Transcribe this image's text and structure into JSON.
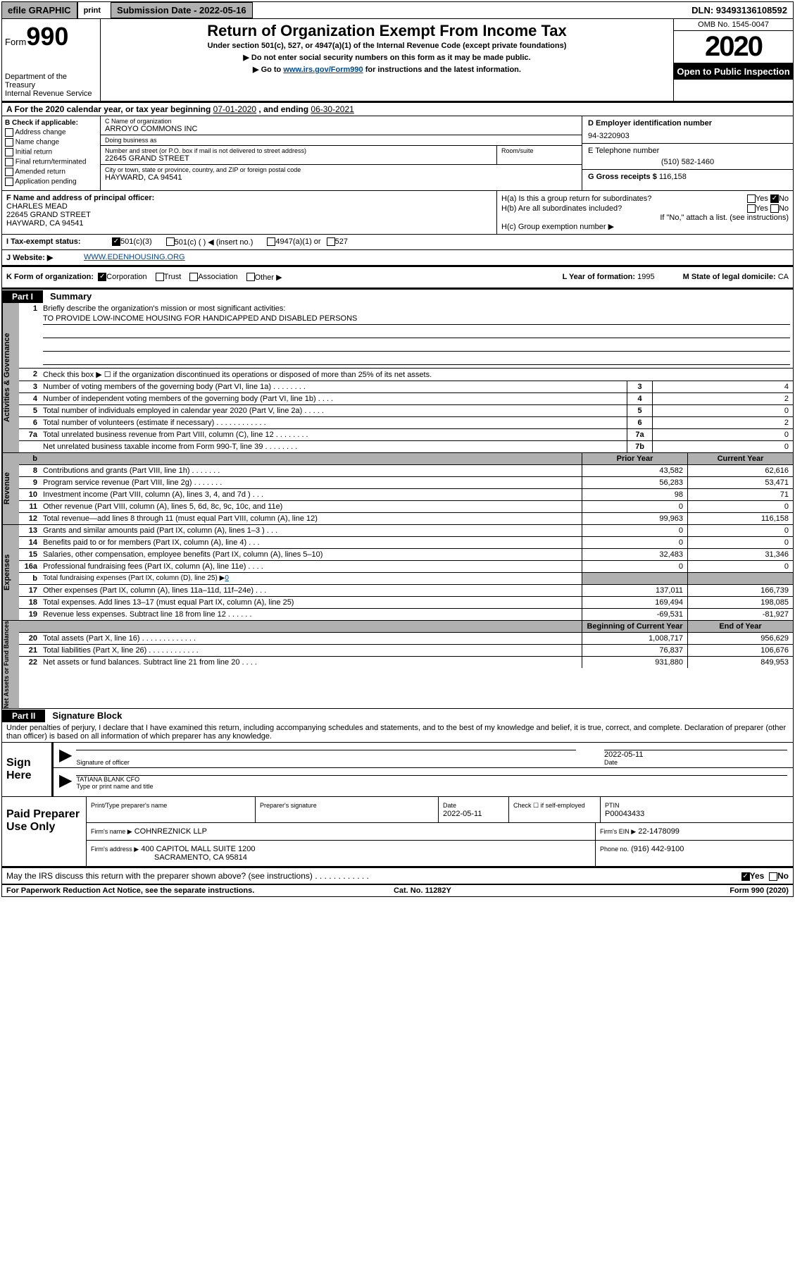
{
  "topbar": {
    "efile": "efile GRAPHIC",
    "print": "print",
    "subdate_label": "Submission Date - 2022-05-16",
    "dln": "DLN: 93493136108592"
  },
  "header": {
    "form_label": "Form",
    "form_num": "990",
    "dept": "Department of the Treasury\nInternal Revenue Service",
    "title": "Return of Organization Exempt From Income Tax",
    "subtitle": "Under section 501(c), 527, or 4947(a)(1) of the Internal Revenue Code (except private foundations)",
    "line1": "▶ Do not enter social security numbers on this form as it may be made public.",
    "line2a": "▶ Go to ",
    "line2_link": "www.irs.gov/Form990",
    "line2b": " for instructions and the latest information.",
    "omb": "OMB No. 1545-0047",
    "year": "2020",
    "open_public": "Open to Public Inspection"
  },
  "A": {
    "text_a": "A   For the 2020 calendar year, or tax year beginning ",
    "begin": "07-01-2020",
    "text_b": "  , and ending ",
    "end": "06-30-2021"
  },
  "B": {
    "hdr": "B Check if applicable:",
    "items": [
      "Address change",
      "Name change",
      "Initial return",
      "Final return/terminated",
      "Amended return",
      "Application pending"
    ]
  },
  "C": {
    "name_lbl": "C Name of organization",
    "name": "ARROYO COMMONS INC",
    "dba_lbl": "Doing business as",
    "dba": "",
    "street_lbl": "Number and street (or P.O. box if mail is not delivered to street address)",
    "room_lbl": "Room/suite",
    "street": "22645 GRAND STREET",
    "city_lbl": "City or town, state or province, country, and ZIP or foreign postal code",
    "city": "HAYWARD, CA  94541"
  },
  "D": {
    "lbl": "D Employer identification number",
    "val": "94-3220903"
  },
  "E": {
    "lbl": "E Telephone number",
    "val": "(510) 582-1460"
  },
  "G": {
    "lbl": "G Gross receipts $",
    "val": "116,158"
  },
  "F": {
    "lbl": "F  Name and address of principal officer:",
    "name": "CHARLES MEAD",
    "street": "22645 GRAND STREET",
    "city": "HAYWARD, CA  94541"
  },
  "H": {
    "a_lbl": "H(a)  Is this a group return for subordinates?",
    "a_yes": "Yes",
    "a_no": "No",
    "b_lbl": "H(b)  Are all subordinates included?",
    "b_yes": "Yes",
    "b_no": "No",
    "b_note": "If \"No,\" attach a list. (see instructions)",
    "c_lbl": "H(c)  Group exemption number ▶"
  },
  "I": {
    "lbl": "I    Tax-exempt status:",
    "opts": [
      "501(c)(3)",
      "501(c) (   ) ◀ (insert no.)",
      "4947(a)(1) or",
      "527"
    ]
  },
  "J": {
    "lbl": "J    Website: ▶",
    "val": "WWW.EDENHOUSING.ORG"
  },
  "K": {
    "lbl": "K Form of organization:",
    "opts": [
      "Corporation",
      "Trust",
      "Association",
      "Other ▶"
    ]
  },
  "L": {
    "lbl": "L Year of formation:",
    "val": "1995"
  },
  "M": {
    "lbl": "M State of legal domicile:",
    "val": "CA"
  },
  "partI": {
    "tag": "Part I",
    "title": "Summary",
    "side_gov": "Activities & Governance",
    "side_rev": "Revenue",
    "side_exp": "Expenses",
    "side_net": "Net Assets or Fund Balances",
    "r1_lbl": "Briefly describe the organization's mission or most significant activities:",
    "r1_val": "TO PROVIDE LOW-INCOME HOUSING FOR HANDICAPPED AND DISABLED PERSONS",
    "r2_lbl": "Check this box ▶ ☐  if the organization discontinued its operations or disposed of more than 25% of its net assets.",
    "rows_gov": [
      {
        "n": "3",
        "t": "Number of voting members of the governing body (Part VI, line 1a)    .    .    .    .    .    .    .    .",
        "k": "3",
        "v": "4"
      },
      {
        "n": "4",
        "t": "Number of independent voting members of the governing body (Part VI, line 1b)    .    .    .    .",
        "k": "4",
        "v": "2"
      },
      {
        "n": "5",
        "t": "Total number of individuals employed in calendar year 2020 (Part V, line 2a)    .    .    .    .    .",
        "k": "5",
        "v": "0"
      },
      {
        "n": "6",
        "t": "Total number of volunteers (estimate if necessary)    .    .    .    .    .    .    .    .    .    .    .    .",
        "k": "6",
        "v": "2"
      },
      {
        "n": "7a",
        "t": "Total unrelated business revenue from Part VIII, column (C), line 12   .    .    .    .    .    .    .    .",
        "k": "7a",
        "v": "0"
      },
      {
        "n": "",
        "t": "Net unrelated business taxable income from Form 990-T, line 39    .    .    .    .    .    .    .    .",
        "k": "7b",
        "v": "0"
      }
    ],
    "col_hdr": {
      "b": "b",
      "prior": "Prior Year",
      "current": "Current Year"
    },
    "rows_rev": [
      {
        "n": "8",
        "t": "Contributions and grants (Part VIII, line 1h)    .    .    .    .    .    .    .",
        "p": "43,582",
        "c": "62,616"
      },
      {
        "n": "9",
        "t": "Program service revenue (Part VIII, line 2g)    .    .    .    .    .    .    .",
        "p": "56,283",
        "c": "53,471"
      },
      {
        "n": "10",
        "t": "Investment income (Part VIII, column (A), lines 3, 4, and 7d )    .    .    .",
        "p": "98",
        "c": "71"
      },
      {
        "n": "11",
        "t": "Other revenue (Part VIII, column (A), lines 5, 6d, 8c, 9c, 10c, and 11e)",
        "p": "0",
        "c": "0"
      },
      {
        "n": "12",
        "t": "Total revenue—add lines 8 through 11 (must equal Part VIII, column (A), line 12)",
        "p": "99,963",
        "c": "116,158"
      }
    ],
    "rows_exp": [
      {
        "n": "13",
        "t": "Grants and similar amounts paid (Part IX, column (A), lines 1–3 )    .    .    .",
        "p": "0",
        "c": "0"
      },
      {
        "n": "14",
        "t": "Benefits paid to or for members (Part IX, column (A), line 4)    .    .    .",
        "p": "0",
        "c": "0"
      },
      {
        "n": "15",
        "t": "Salaries, other compensation, employee benefits (Part IX, column (A), lines 5–10)",
        "p": "32,483",
        "c": "31,346"
      },
      {
        "n": "16a",
        "t": "Professional fundraising fees (Part IX, column (A), line 11e)    .    .    .    .",
        "p": "0",
        "c": "0"
      },
      {
        "n": "b",
        "t": "Total fundraising expenses (Part IX, column (D), line 25) ▶",
        "link": "0",
        "p": "",
        "c": "",
        "shade": true
      },
      {
        "n": "17",
        "t": "Other expenses (Part IX, column (A), lines 11a–11d, 11f–24e)    .    .    .",
        "p": "137,011",
        "c": "166,739"
      },
      {
        "n": "18",
        "t": "Total expenses. Add lines 13–17 (must equal Part IX, column (A), line 25)",
        "p": "169,494",
        "c": "198,085"
      },
      {
        "n": "19",
        "t": "Revenue less expenses. Subtract line 18 from line 12  .    .    .    .    .    .",
        "p": "-69,531",
        "c": "-81,927"
      }
    ],
    "net_hdr": {
      "boy": "Beginning of Current Year",
      "eoy": "End of Year"
    },
    "rows_net": [
      {
        "n": "20",
        "t": "Total assets (Part X, line 16)    .    .    .    .    .    .    .    .    .    .    .    .    .",
        "p": "1,008,717",
        "c": "956,629"
      },
      {
        "n": "21",
        "t": "Total liabilities (Part X, line 26)    .    .    .    .    .    .    .    .    .    .    .    .",
        "p": "76,837",
        "c": "106,676"
      },
      {
        "n": "22",
        "t": "Net assets or fund balances. Subtract line 21 from line 20   .    .    .    .",
        "p": "931,880",
        "c": "849,953"
      }
    ]
  },
  "partII": {
    "tag": "Part II",
    "title": "Signature Block",
    "penalty": "Under penalties of perjury, I declare that I have examined this return, including accompanying schedules and statements, and to the best of my knowledge and belief, it is true, correct, and complete. Declaration of preparer (other than officer) is based on all information of which preparer has any knowledge."
  },
  "sign": {
    "left": "Sign Here",
    "sig_lbl": "Signature of officer",
    "date_lbl": "Date",
    "date_val": "2022-05-11",
    "name": "TATIANA BLANK CFO",
    "name_lbl": "Type or print name and title"
  },
  "prep": {
    "left": "Paid Preparer Use Only",
    "c1": "Print/Type preparer's name",
    "c2": "Preparer's signature",
    "c3": "Date",
    "c3v": "2022-05-11",
    "c4": "Check ☐ if self-employed",
    "c5": "PTIN",
    "c5v": "P00043433",
    "firm_lbl": "Firm's name     ▶",
    "firm": "COHNREZNICK LLP",
    "ein_lbl": "Firm's EIN ▶",
    "ein": "22-1478099",
    "addr_lbl": "Firm's address ▶",
    "addr1": "400 CAPITOL MALL SUITE 1200",
    "addr2": "SACRAMENTO, CA  95814",
    "phone_lbl": "Phone no.",
    "phone": "(916) 442-9100"
  },
  "irs": {
    "text": "May the IRS discuss this return with the preparer shown above? (see instructions)    .    .    .    .    .    .    .    .    .    .    .    .",
    "yes": "Yes",
    "no": "No"
  },
  "foot": {
    "left": "For Paperwork Reduction Act Notice, see the separate instructions.",
    "mid": "Cat. No. 11282Y",
    "right": "Form 990 (2020)"
  }
}
